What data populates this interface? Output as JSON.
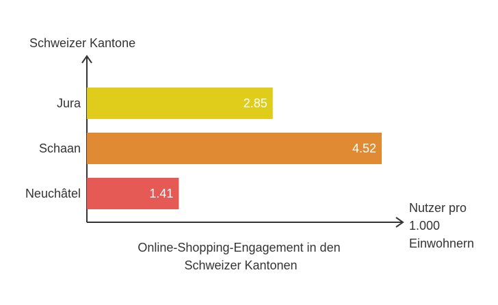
{
  "chart_data": {
    "type": "bar",
    "orientation": "horizontal",
    "ylabel": "Schweizer Kantone",
    "xlabel_lines": [
      "Nutzer pro",
      "1.000",
      "Einwohnern"
    ],
    "caption_lines": [
      "Online-Shopping-Engagement in den",
      "Schweizer Kantonen"
    ],
    "categories": [
      "Jura",
      "Schaan",
      "Neuchâtel"
    ],
    "values": [
      2.85,
      4.52,
      1.41
    ],
    "value_labels": [
      "2.85",
      "4.52",
      "1.41"
    ],
    "colors": [
      "#e0cc1a",
      "#e08a33",
      "#e55a55"
    ],
    "xlim": [
      0,
      4.52
    ],
    "grid": false,
    "legend": "none"
  }
}
